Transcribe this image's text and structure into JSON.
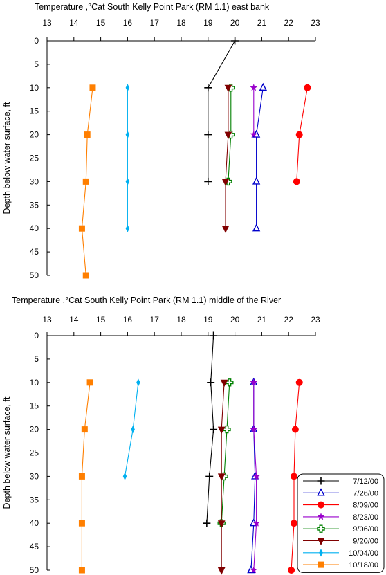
{
  "chart_data": [
    {
      "type": "line",
      "title": "Temperature ,°Cat South Kelly Point Park (RM 1.1) east bank",
      "xlabel": "",
      "ylabel": "Depth below water surface, ft",
      "xlim": [
        13,
        23
      ],
      "ylim": [
        0,
        50
      ],
      "y_inverted": true,
      "x_axis_position": "top",
      "x_ticks": [
        "13",
        "14",
        "15",
        "16",
        "17",
        "18",
        "19",
        "20",
        "21",
        "22",
        "23"
      ],
      "y_ticks": [
        "0",
        "5",
        "10",
        "15",
        "20",
        "25",
        "30",
        "35",
        "40",
        "45",
        "50"
      ],
      "series": [
        {
          "name": "7/12/00",
          "color": "#000000",
          "marker": "plus",
          "points": [
            [
              20.0,
              0
            ],
            [
              19.0,
              10
            ],
            [
              19.0,
              20
            ],
            [
              19.0,
              30
            ]
          ]
        },
        {
          "name": "7/26/00",
          "color": "#0000cc",
          "marker": "triangle",
          "points": [
            [
              21.05,
              10
            ],
            [
              20.8,
              20
            ],
            [
              20.8,
              30
            ],
            [
              20.8,
              40
            ]
          ]
        },
        {
          "name": "8/09/00",
          "color": "#ff0000",
          "marker": "circle",
          "points": [
            [
              22.7,
              10
            ],
            [
              22.4,
              20
            ],
            [
              22.3,
              30
            ]
          ]
        },
        {
          "name": "8/23/00",
          "color": "#9900cc",
          "marker": "star",
          "points": [
            [
              20.7,
              10
            ],
            [
              20.7,
              20
            ]
          ]
        },
        {
          "name": "9/06/00",
          "color": "#008000",
          "marker": "cross",
          "points": [
            [
              19.85,
              10
            ],
            [
              19.85,
              20
            ],
            [
              19.75,
              30
            ]
          ]
        },
        {
          "name": "9/20/00",
          "color": "#800000",
          "marker": "down-triangle",
          "points": [
            [
              19.75,
              10
            ],
            [
              19.75,
              20
            ],
            [
              19.65,
              30
            ],
            [
              19.65,
              40
            ]
          ]
        },
        {
          "name": "10/04/00",
          "color": "#00b0f0",
          "marker": "diamond",
          "points": [
            [
              16.0,
              10
            ],
            [
              16.0,
              20
            ],
            [
              16.0,
              30
            ],
            [
              16.0,
              40
            ]
          ]
        },
        {
          "name": "10/18/00",
          "color": "#ff7f00",
          "marker": "square",
          "points": [
            [
              14.7,
              10
            ],
            [
              14.5,
              20
            ],
            [
              14.45,
              30
            ],
            [
              14.3,
              40
            ],
            [
              14.45,
              50
            ]
          ]
        }
      ]
    },
    {
      "type": "line",
      "title": "Temperature ,°Cat South Kelly Point Park (RM 1.1) middle of the River",
      "xlabel": "",
      "ylabel": "Depth below water surface, ft",
      "xlim": [
        13,
        23
      ],
      "ylim": [
        0,
        50
      ],
      "y_inverted": true,
      "x_axis_position": "top",
      "x_ticks": [
        "13",
        "14",
        "15",
        "16",
        "17",
        "18",
        "19",
        "20",
        "21",
        "22",
        "23"
      ],
      "y_ticks": [
        "0",
        "5",
        "10",
        "15",
        "20",
        "25",
        "30",
        "35",
        "40",
        "45",
        "50"
      ],
      "legend_position": "bottom-right",
      "series": [
        {
          "name": "7/12/00",
          "color": "#000000",
          "marker": "plus",
          "points": [
            [
              19.2,
              0
            ],
            [
              19.1,
              10
            ],
            [
              19.2,
              20
            ],
            [
              19.05,
              30
            ],
            [
              18.95,
              40
            ]
          ]
        },
        {
          "name": "7/26/00",
          "color": "#0000cc",
          "marker": "triangle",
          "points": [
            [
              20.7,
              10
            ],
            [
              20.7,
              20
            ],
            [
              20.75,
              30
            ],
            [
              20.7,
              40
            ],
            [
              20.6,
              50
            ]
          ]
        },
        {
          "name": "8/09/00",
          "color": "#ff0000",
          "marker": "circle",
          "points": [
            [
              22.4,
              10
            ],
            [
              22.25,
              20
            ],
            [
              22.2,
              30
            ],
            [
              22.2,
              40
            ],
            [
              22.1,
              50
            ]
          ]
        },
        {
          "name": "8/23/00",
          "color": "#9900cc",
          "marker": "star",
          "points": [
            [
              20.7,
              10
            ],
            [
              20.7,
              20
            ],
            [
              20.8,
              30
            ],
            [
              20.8,
              40
            ],
            [
              20.7,
              50
            ]
          ]
        },
        {
          "name": "9/06/00",
          "color": "#008000",
          "marker": "cross",
          "points": [
            [
              19.8,
              10
            ],
            [
              19.7,
              20
            ],
            [
              19.6,
              30
            ],
            [
              19.5,
              40
            ]
          ]
        },
        {
          "name": "9/20/00",
          "color": "#800000",
          "marker": "down-triangle",
          "points": [
            [
              19.6,
              10
            ],
            [
              19.5,
              20
            ],
            [
              19.5,
              30
            ],
            [
              19.5,
              40
            ],
            [
              19.5,
              50
            ]
          ]
        },
        {
          "name": "10/04/00",
          "color": "#00b0f0",
          "marker": "diamond",
          "points": [
            [
              16.4,
              10
            ],
            [
              16.2,
              20
            ],
            [
              15.9,
              30
            ]
          ]
        },
        {
          "name": "10/18/00",
          "color": "#ff7f00",
          "marker": "square",
          "points": [
            [
              14.6,
              10
            ],
            [
              14.4,
              20
            ],
            [
              14.3,
              30
            ],
            [
              14.3,
              40
            ],
            [
              14.3,
              50
            ]
          ]
        }
      ]
    }
  ]
}
